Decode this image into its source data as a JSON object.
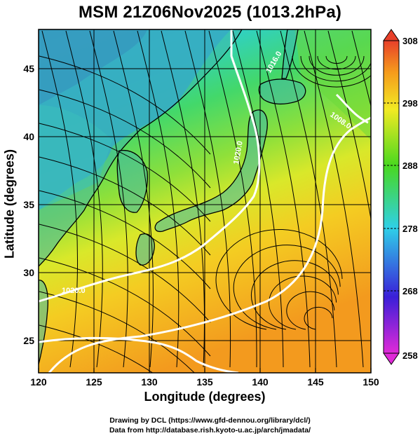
{
  "title": "MSM 21Z06Nov2025 (1013.2hPa)",
  "x_axis": {
    "label": "Longitude (degrees)",
    "ticks": [
      "120",
      "125",
      "130",
      "135",
      "140",
      "145",
      "150"
    ],
    "range": [
      120,
      150
    ]
  },
  "y_axis": {
    "label": "Latitude  (degrees)",
    "ticks": [
      "25",
      "30",
      "35",
      "40",
      "45"
    ],
    "range": [
      22.4,
      47.6
    ]
  },
  "colorbar": {
    "ticks": [
      "258",
      "268",
      "278",
      "288",
      "298",
      "308"
    ],
    "range": [
      258,
      308
    ],
    "colors": [
      "#e02ad8",
      "#3a1fd8",
      "#2fd0e8",
      "#49d81f",
      "#f2ea23",
      "#f59a1c",
      "#e8402a"
    ]
  },
  "isobar_labels": [
    "1020.0",
    "1020.0",
    "1016.0",
    "1008.0"
  ],
  "credits": {
    "line1": "Drawing by DCL (https://www.gfd-dennou.org/library/dcl/)",
    "line2": "Data from http://database.rish.kyoto-u.ac.jp/arch/jmadata/"
  },
  "colors": {
    "land_outline": "#000000",
    "isobar": "#ffffff",
    "streamline": "#000000"
  }
}
